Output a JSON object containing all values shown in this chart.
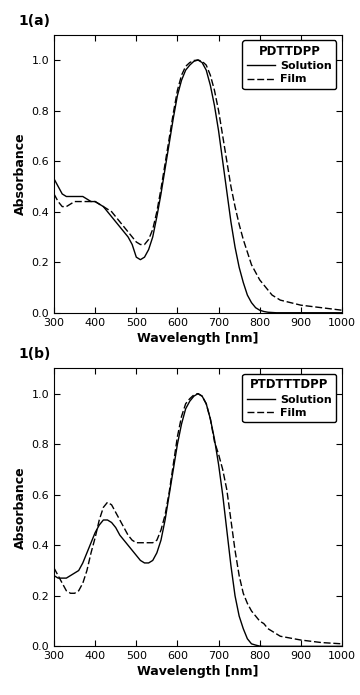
{
  "panel_a": {
    "title": "PDTTDPP",
    "label": "1(a)",
    "solution": {
      "x": [
        300,
        310,
        320,
        330,
        340,
        350,
        360,
        370,
        380,
        390,
        400,
        410,
        420,
        430,
        440,
        450,
        460,
        470,
        480,
        490,
        500,
        510,
        520,
        530,
        540,
        550,
        560,
        570,
        580,
        590,
        600,
        610,
        620,
        630,
        640,
        650,
        660,
        670,
        680,
        690,
        700,
        710,
        720,
        730,
        740,
        750,
        760,
        770,
        780,
        790,
        800,
        810,
        820,
        830,
        840,
        850,
        900,
        950,
        1000
      ],
      "y": [
        0.53,
        0.5,
        0.47,
        0.46,
        0.46,
        0.46,
        0.46,
        0.46,
        0.45,
        0.44,
        0.44,
        0.43,
        0.42,
        0.4,
        0.38,
        0.36,
        0.34,
        0.32,
        0.3,
        0.27,
        0.22,
        0.21,
        0.22,
        0.25,
        0.3,
        0.38,
        0.47,
        0.57,
        0.67,
        0.77,
        0.86,
        0.92,
        0.96,
        0.98,
        0.995,
        1.0,
        0.99,
        0.96,
        0.9,
        0.82,
        0.72,
        0.6,
        0.48,
        0.36,
        0.26,
        0.18,
        0.12,
        0.07,
        0.04,
        0.02,
        0.01,
        0.005,
        0.002,
        0.001,
        0.0,
        0.0,
        0.0,
        0.0,
        0.0
      ]
    },
    "film": {
      "x": [
        300,
        310,
        320,
        330,
        340,
        350,
        360,
        370,
        380,
        390,
        400,
        410,
        420,
        430,
        440,
        450,
        460,
        470,
        480,
        490,
        500,
        510,
        520,
        530,
        540,
        550,
        560,
        570,
        580,
        590,
        600,
        610,
        620,
        630,
        640,
        650,
        660,
        670,
        680,
        690,
        700,
        710,
        720,
        730,
        740,
        750,
        760,
        770,
        780,
        790,
        800,
        810,
        820,
        830,
        840,
        850,
        900,
        950,
        1000
      ],
      "y": [
        0.47,
        0.44,
        0.42,
        0.42,
        0.43,
        0.44,
        0.44,
        0.44,
        0.44,
        0.44,
        0.44,
        0.43,
        0.42,
        0.41,
        0.4,
        0.38,
        0.36,
        0.34,
        0.32,
        0.3,
        0.28,
        0.27,
        0.27,
        0.29,
        0.33,
        0.4,
        0.49,
        0.59,
        0.69,
        0.79,
        0.88,
        0.94,
        0.975,
        0.99,
        0.998,
        1.0,
        0.995,
        0.98,
        0.94,
        0.88,
        0.8,
        0.7,
        0.6,
        0.5,
        0.42,
        0.35,
        0.29,
        0.24,
        0.19,
        0.16,
        0.13,
        0.11,
        0.09,
        0.07,
        0.06,
        0.05,
        0.03,
        0.02,
        0.01
      ]
    }
  },
  "panel_b": {
    "title": "PTDTTTDPP",
    "label": "1(b)",
    "solution": {
      "x": [
        300,
        310,
        320,
        330,
        340,
        350,
        360,
        370,
        380,
        390,
        400,
        410,
        420,
        430,
        440,
        450,
        460,
        470,
        480,
        490,
        500,
        510,
        520,
        530,
        540,
        550,
        560,
        570,
        580,
        590,
        600,
        610,
        620,
        630,
        640,
        650,
        660,
        670,
        680,
        690,
        700,
        710,
        720,
        730,
        740,
        750,
        760,
        770,
        780,
        790,
        800,
        810,
        820,
        830,
        840,
        850,
        900,
        950,
        1000
      ],
      "y": [
        0.28,
        0.27,
        0.27,
        0.27,
        0.28,
        0.29,
        0.3,
        0.33,
        0.37,
        0.41,
        0.45,
        0.48,
        0.5,
        0.5,
        0.49,
        0.47,
        0.44,
        0.42,
        0.4,
        0.38,
        0.36,
        0.34,
        0.33,
        0.33,
        0.34,
        0.37,
        0.42,
        0.5,
        0.6,
        0.7,
        0.8,
        0.88,
        0.94,
        0.97,
        0.99,
        1.0,
        0.99,
        0.96,
        0.9,
        0.82,
        0.72,
        0.6,
        0.46,
        0.32,
        0.2,
        0.12,
        0.07,
        0.03,
        0.01,
        0.005,
        0.001,
        0.0,
        0.0,
        0.0,
        0.0,
        0.0,
        0.0,
        0.0,
        0.0
      ]
    },
    "film": {
      "x": [
        300,
        310,
        320,
        330,
        340,
        350,
        360,
        370,
        380,
        390,
        400,
        410,
        420,
        430,
        440,
        450,
        460,
        470,
        480,
        490,
        500,
        510,
        520,
        530,
        540,
        550,
        560,
        570,
        580,
        590,
        600,
        610,
        620,
        630,
        640,
        650,
        660,
        670,
        680,
        690,
        700,
        710,
        720,
        730,
        740,
        750,
        760,
        770,
        780,
        790,
        800,
        810,
        820,
        830,
        840,
        850,
        900,
        950,
        1000
      ],
      "y": [
        0.31,
        0.28,
        0.25,
        0.22,
        0.21,
        0.21,
        0.22,
        0.25,
        0.3,
        0.37,
        0.43,
        0.5,
        0.55,
        0.57,
        0.56,
        0.53,
        0.5,
        0.47,
        0.44,
        0.42,
        0.41,
        0.41,
        0.41,
        0.41,
        0.41,
        0.42,
        0.46,
        0.52,
        0.61,
        0.72,
        0.83,
        0.91,
        0.96,
        0.98,
        0.995,
        1.0,
        0.99,
        0.96,
        0.9,
        0.81,
        0.76,
        0.7,
        0.62,
        0.5,
        0.38,
        0.28,
        0.21,
        0.17,
        0.14,
        0.12,
        0.1,
        0.09,
        0.07,
        0.06,
        0.05,
        0.04,
        0.025,
        0.015,
        0.01
      ]
    }
  },
  "xlabel": "Wavelength [nm]",
  "ylabel": "Absorbance",
  "xlim": [
    300,
    1000
  ],
  "ylim": [
    0.0,
    1.1
  ],
  "yticks": [
    0.0,
    0.2,
    0.4,
    0.6,
    0.8,
    1.0
  ],
  "xticks": [
    300,
    400,
    500,
    600,
    700,
    800,
    900,
    1000
  ],
  "solution_color": "#000000",
  "film_color": "#000000",
  "solution_linestyle": "solid",
  "film_linestyle": "dashed",
  "linewidth": 1.0
}
